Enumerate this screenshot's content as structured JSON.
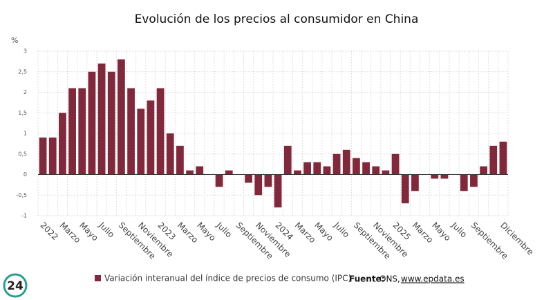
{
  "chart_data": {
    "type": "bar",
    "title": "Evolución de los precios al consumidor en China",
    "y_unit": "%",
    "categories": [
      "2022",
      null,
      "Marzo",
      null,
      "Mayo",
      null,
      "Julio",
      null,
      "Septiembre",
      null,
      "Noviembre",
      null,
      "2023",
      null,
      "Marzo",
      null,
      "Mayo",
      null,
      "Julio",
      null,
      "Septiembre",
      null,
      "Noviembre",
      null,
      "2024",
      null,
      "Marzo",
      null,
      "Mayo",
      null,
      "Julio",
      null,
      "Septiembre",
      null,
      "Noviembre",
      null,
      "2025",
      null,
      "Marzo",
      null,
      "Mayo",
      null,
      "Julio",
      null,
      "Septiembre",
      null,
      null,
      "Diciembre"
    ],
    "series": [
      {
        "name": "Variación interanual del índice de precios de consumo (IPC)",
        "color": "#7f2a3c",
        "values": [
          0.9,
          0.9,
          1.5,
          2.1,
          2.1,
          2.5,
          2.7,
          2.5,
          2.8,
          2.1,
          1.6,
          1.8,
          2.1,
          1.0,
          0.7,
          0.1,
          0.2,
          0.0,
          -0.3,
          0.1,
          0.0,
          -0.2,
          -0.5,
          -0.3,
          -0.8,
          0.7,
          0.1,
          0.3,
          0.3,
          0.2,
          0.5,
          0.6,
          0.4,
          0.3,
          0.2,
          0.1,
          0.5,
          -0.7,
          -0.4,
          0.0,
          -0.1,
          -0.1,
          0.0,
          -0.4,
          -0.3,
          0.2,
          0.7,
          0.8
        ]
      }
    ],
    "ylim": [
      -1,
      3
    ],
    "yticks": [
      -1,
      {
        "value": -0.5,
        "label": "-0,5"
      },
      0,
      {
        "value": 0.5,
        "label": "0,5"
      },
      1,
      {
        "value": 1.5,
        "label": "1,5"
      },
      2,
      {
        "value": 2.5,
        "label": "2,5"
      },
      3
    ],
    "grid": true,
    "source_label": "Fuente:",
    "source": "ONS,",
    "source_link": "www.epdata.es",
    "logo": "24"
  }
}
